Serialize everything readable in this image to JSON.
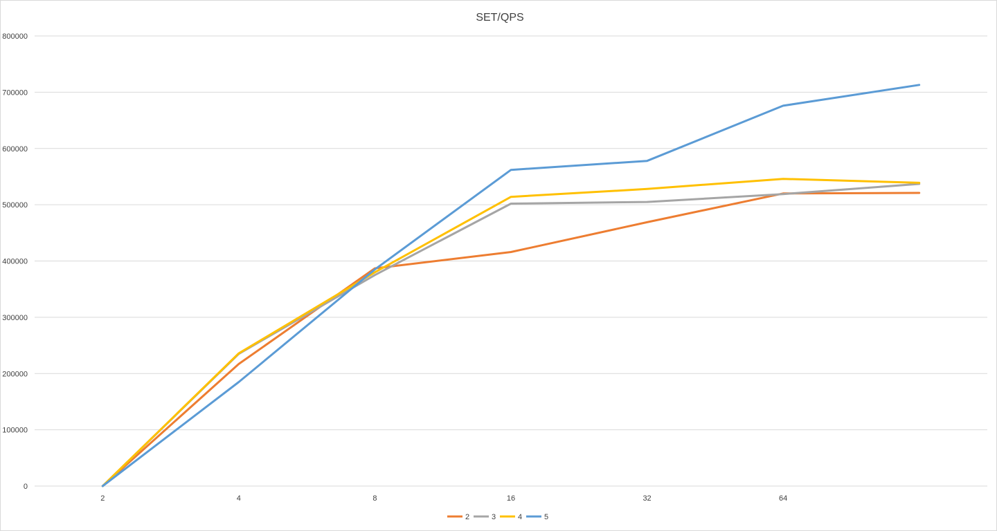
{
  "chart_data": {
    "type": "line",
    "title": "SET/QPS",
    "xlabel": "",
    "ylabel": "",
    "categories": [
      "2",
      "4",
      "8",
      "16",
      "32",
      "64",
      ""
    ],
    "y_ticks": [
      "0",
      "100000",
      "200000",
      "300000",
      "400000",
      "500000",
      "600000",
      "700000",
      "800000"
    ],
    "ylim": [
      0,
      800000
    ],
    "grid": true,
    "legend_position": "bottom",
    "series": [
      {
        "name": "2",
        "color": "#ED7D31",
        "values": [
          0,
          217000,
          387000,
          416000,
          469000,
          520000,
          521000
        ]
      },
      {
        "name": "3",
        "color": "#A5A5A5",
        "values": [
          0,
          235000,
          375000,
          502000,
          505000,
          519000,
          537000
        ]
      },
      {
        "name": "4",
        "color": "#FFC000",
        "values": [
          0,
          236000,
          380000,
          514000,
          528000,
          546000,
          539000
        ]
      },
      {
        "name": "5",
        "color": "#5B9BD5",
        "values": [
          0,
          185000,
          385000,
          562000,
          578000,
          676000,
          713000
        ]
      }
    ]
  }
}
